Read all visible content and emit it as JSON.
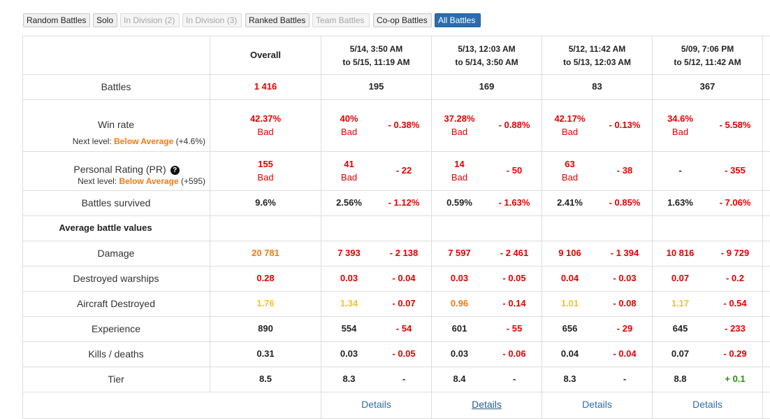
{
  "filters": [
    {
      "label": "Random Battles",
      "state": "normal"
    },
    {
      "label": "Solo",
      "state": "normal"
    },
    {
      "label": "In Division (2)",
      "state": "disabled"
    },
    {
      "label": "In Division (3)",
      "state": "disabled"
    },
    {
      "label": "Ranked Battles",
      "state": "normal"
    },
    {
      "label": "Team Battles",
      "state": "disabled"
    },
    {
      "label": "Co-op Battles",
      "state": "normal"
    },
    {
      "label": "All Battles",
      "state": "active"
    }
  ],
  "colors": {
    "bad_red": "#e00000",
    "orange": "#f07a14",
    "yellow": "#f2c233",
    "green": "#2e8b10",
    "active_button": "#2b6dad",
    "link": "#2d6fa9"
  },
  "header": {
    "overall": "Overall",
    "periods": [
      {
        "line1": "5/14, 3:50 AM",
        "line2": "to 5/15, 11:19 AM"
      },
      {
        "line1": "5/13, 12:03 AM",
        "line2": "to 5/14, 3:50 AM"
      },
      {
        "line1": "5/12, 11:42 AM",
        "line2": "to 5/13, 12:03 AM"
      },
      {
        "line1": "5/09, 7:06 PM",
        "line2": "to 5/12, 11:42 AM"
      }
    ]
  },
  "battles": {
    "label": "Battles",
    "overall": "1 416",
    "periods": [
      "195",
      "169",
      "83",
      "367"
    ]
  },
  "winrate": {
    "label": "Win rate",
    "next_prefix": "Next level:",
    "next_level": "Below Average",
    "next_delta": "(+4.6%)",
    "overall": {
      "value": "42.37%",
      "rating": "Bad"
    },
    "periods": [
      {
        "value": "40%",
        "rating": "Bad",
        "delta": "- 0.38%"
      },
      {
        "value": "37.28%",
        "rating": "Bad",
        "delta": "- 0.88%"
      },
      {
        "value": "42.17%",
        "rating": "Bad",
        "delta": "- 0.13%"
      },
      {
        "value": "34.6%",
        "rating": "Bad",
        "delta": "- 5.58%"
      }
    ]
  },
  "pr": {
    "label": "Personal Rating (PR)",
    "help_icon": "question-circle-icon",
    "help_glyph": "?",
    "next_prefix": "Next level:",
    "next_level": "Below Average",
    "next_delta": "(+595)",
    "overall": {
      "value": "155",
      "rating": "Bad"
    },
    "periods": [
      {
        "value": "41",
        "rating": "Bad",
        "delta": "- 22"
      },
      {
        "value": "14",
        "rating": "Bad",
        "delta": "- 50"
      },
      {
        "value": "63",
        "rating": "Bad",
        "delta": "- 38"
      },
      {
        "value": "-",
        "rating": "",
        "delta": "- 355"
      }
    ]
  },
  "survived": {
    "label": "Battles survived",
    "overall": "9.6%",
    "periods": [
      {
        "value": "2.56%",
        "delta": "- 1.12%"
      },
      {
        "value": "0.59%",
        "delta": "- 1.63%"
      },
      {
        "value": "2.41%",
        "delta": "- 0.85%"
      },
      {
        "value": "1.63%",
        "delta": "- 7.06%"
      }
    ]
  },
  "section_title": "Average battle values",
  "damage": {
    "label": "Damage",
    "overall": "20 781",
    "periods": [
      {
        "value": "7 393",
        "delta": "- 2 138"
      },
      {
        "value": "7 597",
        "delta": "- 2 461"
      },
      {
        "value": "9 106",
        "delta": "- 1 394"
      },
      {
        "value": "10 816",
        "delta": "- 9 729"
      }
    ]
  },
  "destroyed": {
    "label": "Destroyed warships",
    "overall": "0.28",
    "periods": [
      {
        "value": "0.03",
        "delta": "- 0.04"
      },
      {
        "value": "0.03",
        "delta": "- 0.05"
      },
      {
        "value": "0.04",
        "delta": "- 0.03"
      },
      {
        "value": "0.07",
        "delta": "- 0.2"
      }
    ]
  },
  "aircraft": {
    "label": "Aircraft Destroyed",
    "overall": "1.76",
    "periods": [
      {
        "value": "1.34",
        "delta": "- 0.07"
      },
      {
        "value": "0.96",
        "delta": "- 0.14"
      },
      {
        "value": "1.01",
        "delta": "- 0.08"
      },
      {
        "value": "1.17",
        "delta": "- 0.54"
      }
    ]
  },
  "experience": {
    "label": "Experience",
    "overall": "890",
    "periods": [
      {
        "value": "554",
        "delta": "- 54"
      },
      {
        "value": "601",
        "delta": "- 55"
      },
      {
        "value": "656",
        "delta": "- 29"
      },
      {
        "value": "645",
        "delta": "- 233"
      }
    ]
  },
  "kd": {
    "label": "Kills / deaths",
    "overall": "0.31",
    "periods": [
      {
        "value": "0.03",
        "delta": "- 0.05"
      },
      {
        "value": "0.03",
        "delta": "- 0.06"
      },
      {
        "value": "0.04",
        "delta": "- 0.04"
      },
      {
        "value": "0.07",
        "delta": "- 0.29"
      }
    ]
  },
  "tier": {
    "label": "Tier",
    "overall": "8.5",
    "periods": [
      {
        "value": "8.3",
        "delta": "-"
      },
      {
        "value": "8.4",
        "delta": "-"
      },
      {
        "value": "8.3",
        "delta": "-"
      },
      {
        "value": "8.8",
        "delta": "+ 0.1"
      }
    ]
  },
  "details_label": "Details"
}
